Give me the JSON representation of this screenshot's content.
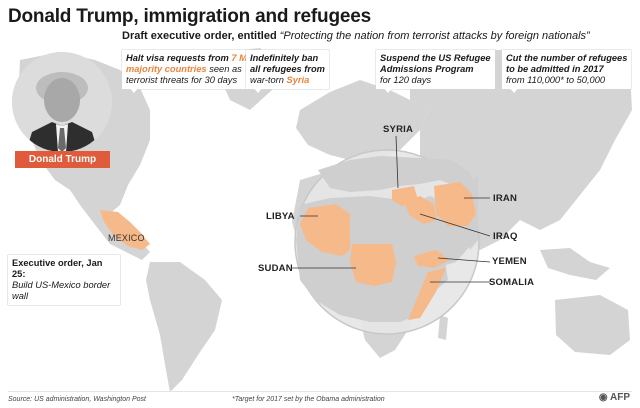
{
  "header": {
    "title": "Donald Trump, immigration and refugees",
    "subtitle_bold": "Draft executive order, entitled",
    "subtitle_italic": "“Protecting the nation from terrorist attacks by foreign nationals”"
  },
  "portrait": {
    "name": "Donald Trump"
  },
  "callouts": [
    {
      "l1": "Halt visa requests from",
      "l1_hl": "7 Muslim-",
      "l2_hl": "majority countries",
      "l2": "seen as",
      "l3": "terrorist threats for 30 days"
    },
    {
      "l1": "Indefinitely ban",
      "l2": "all refugees from",
      "l3": "war-torn",
      "l3_hl": "Syria"
    },
    {
      "l1": "Suspend the US Refugee",
      "l2": "Admissions Program",
      "l3": "for 120 days"
    },
    {
      "l1": "Cut the number of refugees",
      "l2": "to be admitted in 2017",
      "l3": "from 110,000* to 50,000"
    }
  ],
  "countries": {
    "syria": "SYRIA",
    "iran": "IRAN",
    "libya": "LIBYA",
    "iraq": "IRAQ",
    "yemen": "YEMEN",
    "sudan": "SUDAN",
    "somalia": "SOMALIA",
    "mexico": "MEXICO"
  },
  "order": {
    "l1": "Executive order, Jan 25:",
    "l2": "Build US-Mexico border wall"
  },
  "footer": {
    "source": "Source: US administration, Washington Post",
    "note": "*Target for 2017 set by the Obama administration",
    "agency": "AFP"
  },
  "colors": {
    "highlight": "#e8843a",
    "affected_countries": "#f6b98a",
    "land": "#d4d4d4",
    "badge": "#e05a3c"
  }
}
